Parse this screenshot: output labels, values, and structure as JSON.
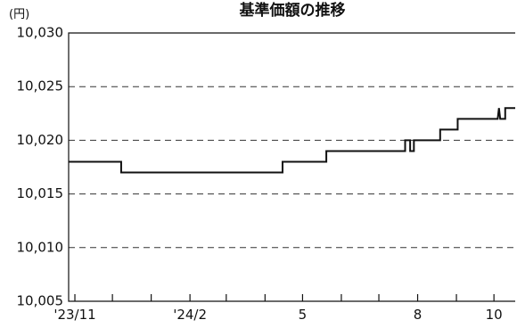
{
  "chart_data": {
    "type": "line",
    "title": "基準価額の推移",
    "unit_label": "(円)",
    "ylim": [
      10005,
      10030
    ],
    "y_ticks": [
      10005,
      10010,
      10015,
      10020,
      10025,
      10030
    ],
    "y_tick_labels": [
      "10,005",
      "10,010",
      "10,015",
      "10,020",
      "10,025",
      "10,030"
    ],
    "x_range": [
      "2023-10-27",
      "2024-10-18"
    ],
    "x_tick_dates": [
      "2023-11-01",
      "2023-12-01",
      "2024-01-01",
      "2024-02-01",
      "2024-03-01",
      "2024-04-01",
      "2024-05-01",
      "2024-06-01",
      "2024-07-01",
      "2024-08-01",
      "2024-09-01",
      "2024-10-01"
    ],
    "x_labels": [
      {
        "date": "2023-11-01",
        "text": "'23/11"
      },
      {
        "date": "2024-02-01",
        "text": "'24/2"
      },
      {
        "date": "2024-05-01",
        "text": "5"
      },
      {
        "date": "2024-08-01",
        "text": "8"
      },
      {
        "date": "2024-10-01",
        "text": "10"
      }
    ],
    "grid": "horizontal dashed",
    "series": [
      {
        "x": [
          "2023-10-27",
          "2023-12-08",
          "2023-12-08",
          "2024-04-15",
          "2024-04-15",
          "2024-05-20",
          "2024-05-20",
          "2024-07-22",
          "2024-07-22",
          "2024-07-26",
          "2024-07-26",
          "2024-07-29",
          "2024-07-29",
          "2024-08-19",
          "2024-08-19",
          "2024-09-02",
          "2024-09-02",
          "2024-09-16",
          "2024-09-16",
          "2024-10-04",
          "2024-10-05",
          "2024-10-06",
          "2024-10-07",
          "2024-10-10",
          "2024-10-10",
          "2024-10-18"
        ],
        "y": [
          10018,
          10018,
          10017,
          10017,
          10018,
          10018,
          10019,
          10019,
          10020,
          10020,
          10019,
          10019,
          10020,
          10020,
          10021,
          10021,
          10022,
          10022,
          10022,
          10022,
          10023,
          10022,
          10022,
          10022,
          10023,
          10023
        ]
      }
    ]
  }
}
